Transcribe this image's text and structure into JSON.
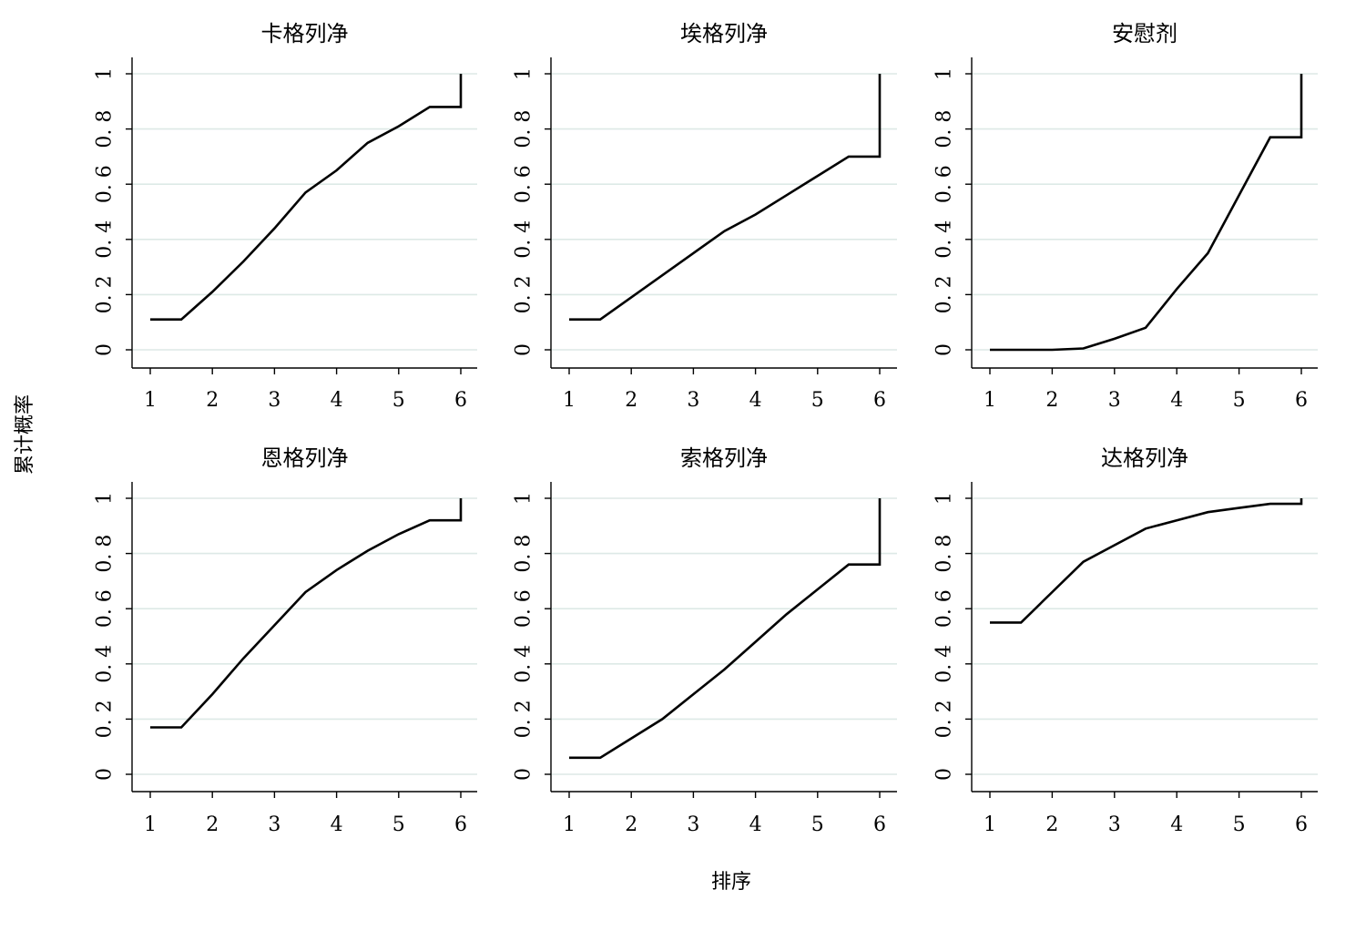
{
  "figure": {
    "xlabel": "排序",
    "ylabel": "累计概率"
  },
  "chart_data": [
    {
      "type": "line",
      "title": "卡格列净",
      "xlim": [
        1,
        6
      ],
      "ylim": [
        0,
        1
      ],
      "grid": true,
      "xticks": [
        1,
        2,
        3,
        4,
        5,
        6
      ],
      "yticks": [
        0,
        0.2,
        0.4,
        0.6,
        0.8,
        1
      ],
      "series": [
        {
          "x": [
            1,
            1.5,
            1.7,
            2,
            2.5,
            3,
            3.5,
            4,
            4.5,
            5,
            5.5,
            6,
            6
          ],
          "y": [
            0.11,
            0.11,
            0.15,
            0.21,
            0.32,
            0.44,
            0.57,
            0.65,
            0.75,
            0.81,
            0.88,
            0.88,
            1.0
          ]
        }
      ]
    },
    {
      "type": "line",
      "title": "埃格列净",
      "xlim": [
        1,
        6
      ],
      "ylim": [
        0,
        1
      ],
      "grid": true,
      "xticks": [
        1,
        2,
        3,
        4,
        5,
        6
      ],
      "yticks": [
        0,
        0.2,
        0.4,
        0.6,
        0.8,
        1
      ],
      "series": [
        {
          "x": [
            1,
            1.5,
            2,
            2.5,
            3,
            3.5,
            4,
            4.5,
            5,
            5.5,
            6,
            6
          ],
          "y": [
            0.11,
            0.11,
            0.19,
            0.27,
            0.35,
            0.43,
            0.49,
            0.56,
            0.63,
            0.7,
            0.7,
            1.0
          ]
        }
      ]
    },
    {
      "type": "line",
      "title": "安慰剂",
      "xlim": [
        1,
        6
      ],
      "ylim": [
        0,
        1
      ],
      "grid": true,
      "xticks": [
        1,
        2,
        3,
        4,
        5,
        6
      ],
      "yticks": [
        0,
        0.2,
        0.4,
        0.6,
        0.8,
        1
      ],
      "series": [
        {
          "x": [
            1,
            1.5,
            2,
            2.5,
            3,
            3.5,
            4,
            4.5,
            5,
            5.5,
            6,
            6
          ],
          "y": [
            0.0,
            0.0,
            0.0,
            0.005,
            0.04,
            0.08,
            0.22,
            0.35,
            0.56,
            0.77,
            0.77,
            1.0
          ]
        }
      ]
    },
    {
      "type": "line",
      "title": "恩格列净",
      "xlim": [
        1,
        6
      ],
      "ylim": [
        0,
        1
      ],
      "grid": true,
      "xticks": [
        1,
        2,
        3,
        4,
        5,
        6
      ],
      "yticks": [
        0,
        0.2,
        0.4,
        0.6,
        0.8,
        1
      ],
      "series": [
        {
          "x": [
            1,
            1.5,
            2,
            2.5,
            3,
            3.5,
            4,
            4.5,
            5,
            5.5,
            6,
            6
          ],
          "y": [
            0.17,
            0.17,
            0.29,
            0.42,
            0.54,
            0.66,
            0.74,
            0.81,
            0.87,
            0.92,
            0.92,
            1.0
          ]
        }
      ]
    },
    {
      "type": "line",
      "title": "索格列净",
      "xlim": [
        1,
        6
      ],
      "ylim": [
        0,
        1
      ],
      "grid": true,
      "xticks": [
        1,
        2,
        3,
        4,
        5,
        6
      ],
      "yticks": [
        0,
        0.2,
        0.4,
        0.6,
        0.8,
        1
      ],
      "series": [
        {
          "x": [
            1,
            1.5,
            2,
            2.5,
            3,
            3.5,
            4,
            4.5,
            5,
            5.5,
            6,
            6
          ],
          "y": [
            0.06,
            0.06,
            0.13,
            0.2,
            0.29,
            0.38,
            0.48,
            0.58,
            0.67,
            0.76,
            0.76,
            1.0
          ]
        }
      ]
    },
    {
      "type": "line",
      "title": "达格列净",
      "xlim": [
        1,
        6
      ],
      "ylim": [
        0,
        1
      ],
      "grid": true,
      "xticks": [
        1,
        2,
        3,
        4,
        5,
        6
      ],
      "yticks": [
        0,
        0.2,
        0.4,
        0.6,
        0.8,
        1
      ],
      "series": [
        {
          "x": [
            1,
            1.5,
            2,
            2.5,
            3,
            3.5,
            4,
            4.5,
            5,
            5.5,
            6,
            6
          ],
          "y": [
            0.55,
            0.55,
            0.66,
            0.77,
            0.83,
            0.89,
            0.92,
            0.95,
            0.965,
            0.98,
            0.98,
            1.0
          ]
        }
      ]
    }
  ]
}
